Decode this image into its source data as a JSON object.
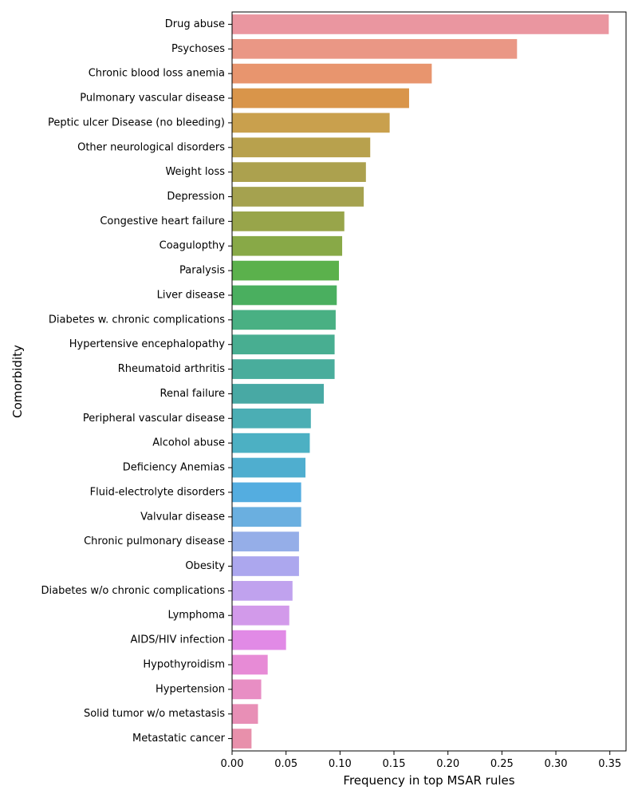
{
  "chart_data": {
    "type": "bar",
    "orientation": "horizontal",
    "xlabel": "Frequency in top MSAR rules",
    "ylabel": "Comorbidity",
    "xlim": [
      0,
      0.365
    ],
    "xticks": [
      "0.00",
      "0.05",
      "0.10",
      "0.15",
      "0.20",
      "0.25",
      "0.30",
      "0.35"
    ],
    "grid": false,
    "categories": [
      "Drug abuse",
      "Psychoses",
      "Chronic blood loss anemia",
      "Pulmonary vascular disease",
      "Peptic ulcer Disease (no bleeding)",
      "Other neurological disorders",
      "Weight loss",
      "Depression",
      "Congestive heart failure",
      "Coagulopthy",
      "Paralysis",
      "Liver disease",
      "Diabetes w. chronic complications",
      "Hypertensive encephalopathy",
      "Rheumatoid arthritis",
      "Renal failure",
      "Peripheral vascular disease",
      "Alcohol abuse",
      "Deficiency Anemias",
      "Fluid-electrolyte disorders",
      "Valvular disease",
      "Chronic pulmonary disease",
      "Obesity",
      "Diabetes w/o chronic complications",
      "Lymphoma",
      "AIDS/HIV infection",
      "Hypothyroidism",
      "Hypertension",
      "Solid tumor w/o metastasis",
      "Metastatic cancer"
    ],
    "values": [
      0.349,
      0.264,
      0.185,
      0.164,
      0.146,
      0.128,
      0.124,
      0.122,
      0.104,
      0.102,
      0.099,
      0.097,
      0.096,
      0.095,
      0.095,
      0.085,
      0.073,
      0.072,
      0.068,
      0.064,
      0.064,
      0.062,
      0.062,
      0.056,
      0.053,
      0.05,
      0.033,
      0.027,
      0.024,
      0.018
    ],
    "colors": [
      "#ea96a0",
      "#ea9785",
      "#e8956e",
      "#d9954a",
      "#c9a04d",
      "#b8a14d",
      "#aca14e",
      "#a5a24f",
      "#98a54a",
      "#88a947",
      "#5bb14c",
      "#4aaf5f",
      "#49b083",
      "#48ae91",
      "#49ad9c",
      "#48a9a4",
      "#4baeb4",
      "#4cb0c3",
      "#4faecf",
      "#54ade0",
      "#6aafe0",
      "#95aee8",
      "#aca7ee",
      "#c0a2ee",
      "#d29aea",
      "#e18ae6",
      "#e78bd6",
      "#e88ec4",
      "#e88fb6",
      "#e890ab"
    ]
  }
}
